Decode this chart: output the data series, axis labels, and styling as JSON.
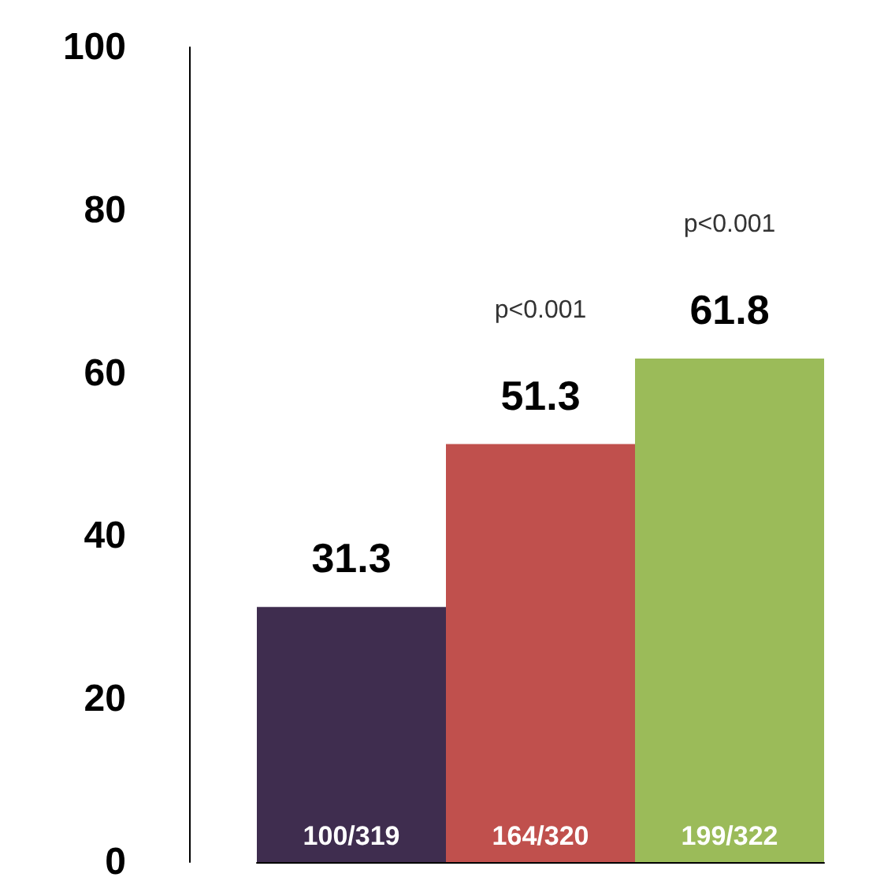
{
  "chart_data": {
    "type": "bar",
    "categories": [
      "100/319",
      "164/320",
      "199/322"
    ],
    "values": [
      31.3,
      51.3,
      61.8
    ],
    "colors": [
      "#3f2d4f",
      "#c0504d",
      "#9bbb59"
    ],
    "ylim": [
      0,
      100
    ],
    "yticks": [
      0,
      20,
      40,
      60,
      80,
      100
    ],
    "grid": false,
    "data_labels": true,
    "annotations": [
      "p<0.001",
      "p<0.001"
    ]
  }
}
